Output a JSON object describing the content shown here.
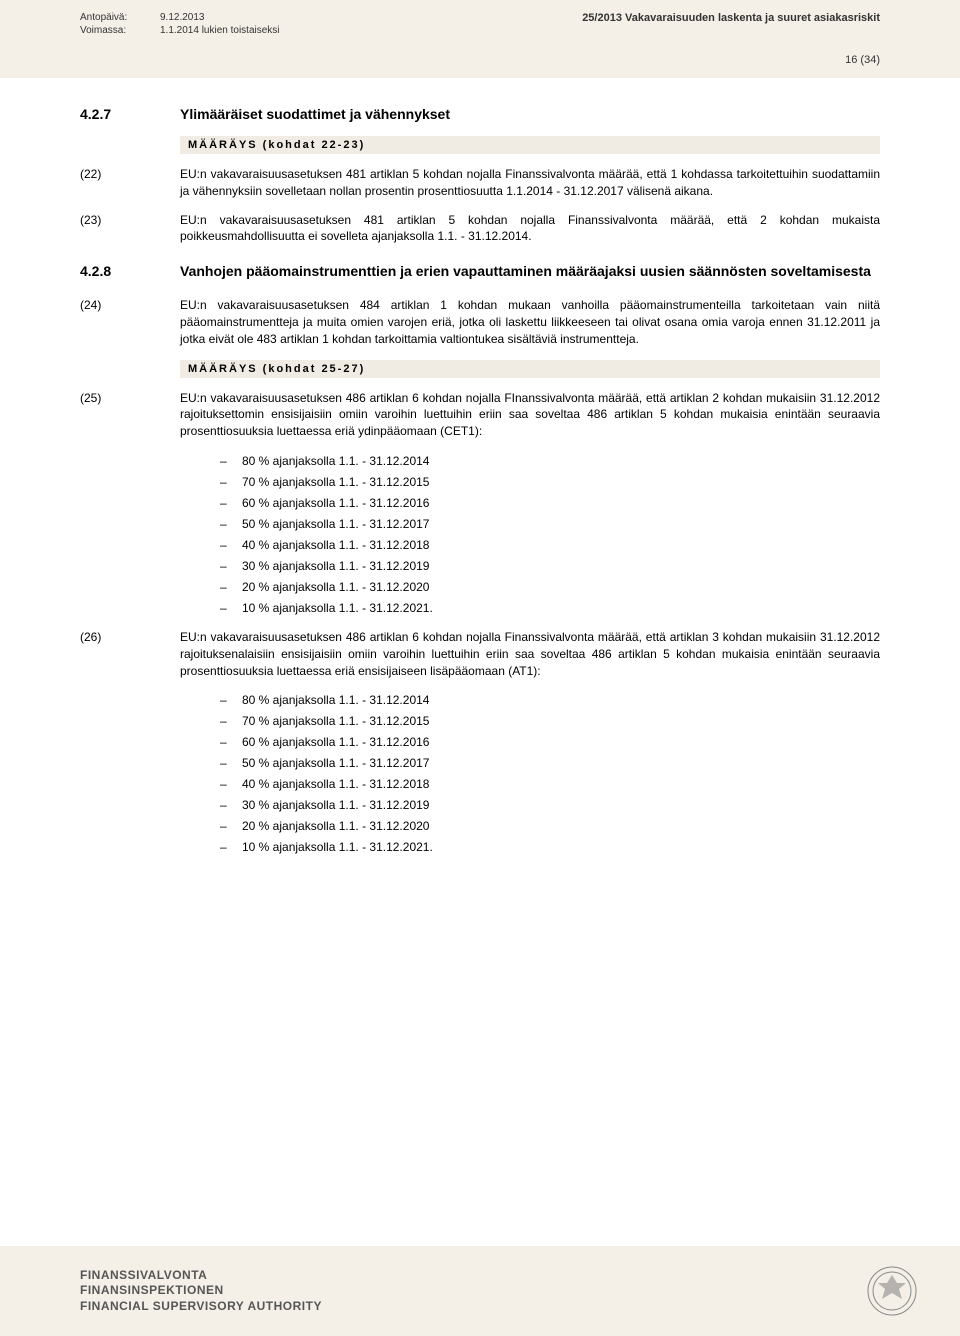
{
  "header": {
    "issued_label": "Antopäivä:",
    "issued_value": "9.12.2013",
    "valid_label": "Voimassa:",
    "valid_value": "1.1.2014 lukien toistaiseksi",
    "doc_title": "25/2013 Vakavaraisuuden laskenta ja suuret asiakasriskit",
    "page_number": "16 (34)"
  },
  "section_427": {
    "num": "4.2.7",
    "title": "Ylimääräiset suodattimet ja vähennykset",
    "maarays": "MÄÄRÄYS (kohdat 22-23)",
    "p22_num": "(22)",
    "p22_body": "EU:n vakavaraisuusasetuksen 481 artiklan 5 kohdan nojalla Finanssivalvonta määrää, että 1 kohdassa tarkoitettuihin suodattamiin ja vähennyksiin sovelletaan nollan prosentin prosenttiosuutta 1.1.2014 - 31.12.2017 välisenä aikana.",
    "p23_num": "(23)",
    "p23_body": "EU:n vakavaraisuusasetuksen 481 artiklan 5 kohdan nojalla Finanssivalvonta määrää, että 2 kohdan mukaista poikkeusmahdollisuutta ei sovelleta ajanjaksolla 1.1. - 31.12.2014."
  },
  "section_428": {
    "num": "4.2.8",
    "title": "Vanhojen pääomainstrumenttien ja erien vapauttaminen määräajaksi uusien säännösten soveltamisesta",
    "p24_num": "(24)",
    "p24_body": "EU:n vakavaraisuusasetuksen 484 artiklan 1 kohdan mukaan vanhoilla pääomainstrumenteilla tarkoitetaan vain niitä pääomainstrumentteja ja muita omien varojen eriä, jotka oli laskettu liikkeeseen tai olivat osana omia varoja ennen 31.12.2011 ja jotka eivät ole 483 artiklan 1 kohdan tarkoittamia valtiontukea sisältäviä instrumentteja.",
    "maarays": "MÄÄRÄYS (kohdat 25-27)",
    "p25_num": "(25)",
    "p25_body": "EU:n vakavaraisuusasetuksen 486 artiklan 6 kohdan nojalla FInanssivalvonta määrää, että artiklan 2 kohdan mukaisiin 31.12.2012 rajoituksettomin ensisijaisiin omiin varoihin luettuihin eriin saa soveltaa 486 artiklan 5 kohdan mukaisia enintään seuraavia prosenttiosuuksia luettaessa eriä ydinpääomaan (CET1):",
    "p25_items": [
      "80 % ajanjaksolla 1.1. - 31.12.2014",
      "70 % ajanjaksolla 1.1. - 31.12.2015",
      "60 % ajanjaksolla 1.1. - 31.12.2016",
      "50 % ajanjaksolla 1.1. - 31.12.2017",
      "40 % ajanjaksolla 1.1. - 31.12.2018",
      "30 % ajanjaksolla 1.1. - 31.12.2019",
      "20 % ajanjaksolla 1.1. - 31.12.2020",
      "10 % ajanjaksolla 1.1. - 31.12.2021."
    ],
    "p26_num": "(26)",
    "p26_body": "EU:n vakavaraisuusasetuksen 486 artiklan 6 kohdan nojalla Finanssivalvonta määrää, että artiklan 3 kohdan mukaisiin 31.12.2012 rajoituksenalaisiin ensisijaisiin omiin varoihin luettuihin eriin saa soveltaa 486 artiklan 5 kohdan mukaisia enintään seuraavia prosenttiosuuksia luettaessa eriä ensisijaiseen lisäpääomaan (AT1):",
    "p26_items": [
      "80 % ajanjaksolla 1.1. - 31.12.2014",
      "70 % ajanjaksolla 1.1. - 31.12.2015",
      "60 % ajanjaksolla 1.1. - 31.12.2016",
      "50 % ajanjaksolla 1.1. - 31.12.2017",
      "40 % ajanjaksolla 1.1. - 31.12.2018",
      "30 % ajanjaksolla 1.1. - 31.12.2019",
      "20 % ajanjaksolla 1.1. - 31.12.2020",
      "10 % ajanjaksolla 1.1. - 31.12.2021."
    ]
  },
  "footer": {
    "line1": "FINANSSIVALVONTA",
    "line2": "FINANSINSPEKTIONEN",
    "line3": "FINANCIAL SUPERVISORY AUTHORITY"
  },
  "colors": {
    "header_bg": "#f4f0e8",
    "maarays_bg": "#f0ece4",
    "text": "#000000"
  }
}
